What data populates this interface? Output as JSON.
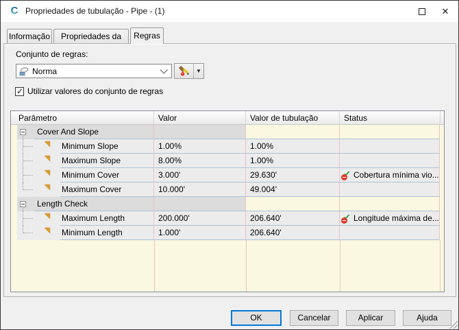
{
  "window": {
    "title": "Propriedades de tubulação - Pipe - (1)",
    "app_icon_letter": "C"
  },
  "tabs": [
    {
      "label": "Informação",
      "active": false
    },
    {
      "label": "Propriedades da peça",
      "active": false
    },
    {
      "label": "Regras",
      "active": true
    }
  ],
  "ruleset": {
    "label": "Conjunto de regras:",
    "selected_value": "Norma",
    "checkbox_label": "Utilizar valores do conjunto de regras",
    "checkbox_checked": true
  },
  "table": {
    "columns": [
      "Parâmetro",
      "Valor",
      "Valor de tubulação",
      "Status"
    ],
    "groups": [
      {
        "name": "Cover And Slope",
        "rows": [
          {
            "param": "Minimum Slope",
            "valor": "1.00%",
            "valor_tubulacao": "1.00%",
            "status": "",
            "violated": false
          },
          {
            "param": "Maximum Slope",
            "valor": "8.00%",
            "valor_tubulacao": "1.00%",
            "status": "",
            "violated": false
          },
          {
            "param": "Minimum Cover",
            "valor": "3.000'",
            "valor_tubulacao": "29.630'",
            "status": "Cobertura mínima vio...",
            "violated": true
          },
          {
            "param": "Maximum Cover",
            "valor": "10.000'",
            "valor_tubulacao": "49.004'",
            "status": "",
            "violated": false
          }
        ]
      },
      {
        "name": "Length Check",
        "rows": [
          {
            "param": "Maximum Length",
            "valor": "200.000'",
            "valor_tubulacao": "206.640'",
            "status": "Longitude máxima de...",
            "violated": true
          },
          {
            "param": "Minimum Length",
            "valor": "1.000'",
            "valor_tubulacao": "206.640'",
            "status": "",
            "violated": false
          }
        ]
      }
    ]
  },
  "buttons": {
    "ok": "OK",
    "cancel": "Cancelar",
    "apply": "Aplicar",
    "help": "Ajuda"
  },
  "colors": {
    "accent_focus": "#0078d7",
    "status_violation_red": "#e23b2e",
    "status_check_green": "#2f9e41",
    "grid_yellow": "#fbf8e1",
    "grid_pink_line": "#eec1c1",
    "grid_blue_line": "#a9c2d8"
  }
}
